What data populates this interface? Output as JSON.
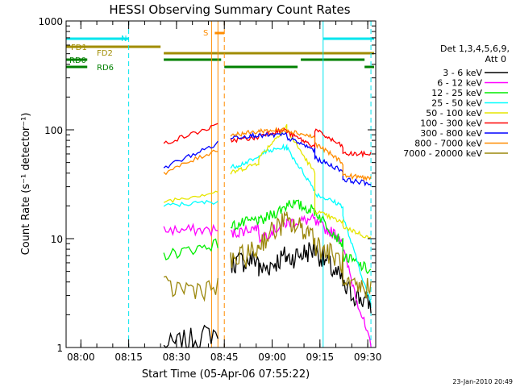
{
  "chart_data": {
    "type": "line",
    "title": "HESSI Observing Summary Count Rates",
    "xlabel": "Start Time (05-Apr-06 07:55:22)",
    "ylabel": "Count Rate (s⁻¹ detector⁻¹)",
    "yscale": "log",
    "xlim": [
      "07:55:22",
      "09:32:30"
    ],
    "ylim": [
      1,
      1000
    ],
    "x_ticks": [
      "08:00",
      "08:15",
      "08:30",
      "08:45",
      "09:00",
      "09:15",
      "09:30"
    ],
    "y_ticks": [
      "1",
      "10",
      "100",
      "1000"
    ],
    "legend_title": [
      "Det 1,3,4,5,6,9,",
      "Att 0"
    ],
    "legend_placement": "right",
    "footer": "23-Jan-2010 20:49",
    "flag_labels": {
      "n": "N",
      "s": "S",
      "fd1": "FD1",
      "fd2": "FD2",
      "rd0": "RD0",
      "rd6": "RD6"
    },
    "flags": [
      {
        "label": "N",
        "color": "#00e5ee",
        "segments": [
          [
            "07:55:22",
            "08:15"
          ],
          [
            "09:16",
            "09:32"
          ]
        ]
      },
      {
        "label": "S",
        "color": "#ff8c00",
        "segments": [
          [
            "08:42",
            "08:45"
          ]
        ]
      },
      {
        "label": "FD1",
        "color": "#a08c00",
        "segments": [
          [
            "07:55:22",
            "08:25"
          ]
        ]
      },
      {
        "label": "FD2",
        "color": "#a08c00",
        "segments": [
          [
            "08:26",
            "09:32"
          ]
        ]
      },
      {
        "label": "RD0",
        "color": "#008000",
        "segments": [
          [
            "07:55:22",
            "08:02"
          ],
          [
            "08:26",
            "08:44"
          ],
          [
            "09:09",
            "09:29"
          ]
        ]
      },
      {
        "label": "RD6",
        "color": "#008000",
        "segments": [
          [
            "07:55:22",
            "08:02"
          ],
          [
            "08:45",
            "09:08"
          ],
          [
            "09:29",
            "09:32"
          ]
        ]
      }
    ],
    "vlines": [
      {
        "x": "08:15",
        "color": "#00e5ee",
        "dash": true
      },
      {
        "x": "08:41",
        "color": "#ff8c00",
        "dash": false
      },
      {
        "x": "08:43",
        "color": "#ff8c00",
        "dash": false
      },
      {
        "x": "08:45",
        "color": "#ff8c00",
        "dash": true
      },
      {
        "x": "09:16",
        "color": "#00e5ee",
        "dash": false
      },
      {
        "x": "09:31",
        "color": "#00e5ee",
        "dash": true
      }
    ],
    "segments": [
      [
        "08:26",
        "08:43"
      ],
      [
        "08:47",
        "09:31"
      ]
    ],
    "series": [
      {
        "name": "3 - 6 keV",
        "color": "#000000",
        "values": [
          [
            1.0,
            1.4
          ],
          [
            6,
            6.5
          ],
          [
            5,
            7
          ],
          [
            6.5,
            8
          ],
          [
            8,
            4
          ],
          [
            3.5,
            2.5
          ]
        ]
      },
      {
        "name": "6 - 12 keV",
        "color": "#ff00ff",
        "values": [
          [
            12,
            12
          ],
          [
            11,
            13
          ],
          [
            10,
            14
          ],
          [
            14,
            15
          ],
          [
            14,
            10
          ],
          [
            8,
            1
          ]
        ]
      },
      {
        "name": "12 - 25 keV",
        "color": "#00ee00",
        "values": [
          [
            7,
            9
          ],
          [
            13,
            15
          ],
          [
            14,
            20
          ],
          [
            22,
            18
          ],
          [
            18,
            9
          ],
          [
            7,
            5
          ]
        ]
      },
      {
        "name": "25 - 50 keV",
        "color": "#00ffff",
        "values": [
          [
            20,
            22
          ],
          [
            45,
            55
          ],
          [
            60,
            70
          ],
          [
            68,
            28
          ],
          [
            26,
            20
          ],
          [
            16,
            2.5
          ]
        ]
      },
      {
        "name": "50 - 100 keV",
        "color": "#e6e600",
        "values": [
          [
            22,
            27
          ],
          [
            40,
            50
          ],
          [
            55,
            110
          ],
          [
            100,
            40
          ],
          [
            18,
            14
          ],
          [
            13,
            10
          ]
        ]
      },
      {
        "name": "100 - 300 keV",
        "color": "#ff0000",
        "values": [
          [
            75,
            110
          ],
          [
            80,
            85
          ],
          [
            90,
            100
          ],
          [
            95,
            70
          ],
          [
            100,
            70
          ],
          [
            60,
            60
          ]
        ]
      },
      {
        "name": "300 - 800 keV",
        "color": "#0000ff",
        "values": [
          [
            45,
            75
          ],
          [
            85,
            90
          ],
          [
            88,
            90
          ],
          [
            85,
            65
          ],
          [
            55,
            42
          ],
          [
            35,
            32
          ]
        ]
      },
      {
        "name": "800 - 7000 keV",
        "color": "#ff8c00",
        "values": [
          [
            40,
            66
          ],
          [
            90,
            96
          ],
          [
            98,
            100
          ],
          [
            100,
            85
          ],
          [
            75,
            50
          ],
          [
            38,
            36
          ]
        ]
      },
      {
        "name": "7000 - 20000 keV",
        "color": "#9b870c",
        "values": [
          [
            3.5,
            3.5
          ],
          [
            6,
            8
          ],
          [
            9,
            15
          ],
          [
            14,
            11
          ],
          [
            9,
            6
          ],
          [
            3.5,
            3.5
          ]
        ]
      }
    ]
  }
}
